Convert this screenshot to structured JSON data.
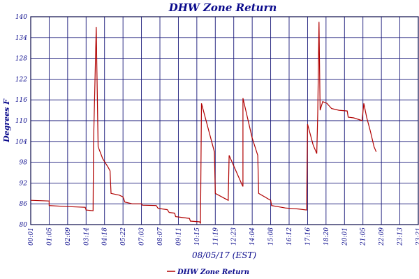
{
  "chart_data": {
    "type": "line",
    "title": "DHW Zone Return",
    "xlabel": "08/05/17 (EST)",
    "ylabel": "Degrees F",
    "ylim": [
      80,
      140
    ],
    "yticks": [
      80,
      86,
      92,
      98,
      104,
      110,
      116,
      122,
      128,
      134,
      140
    ],
    "xticks": [
      "00:01",
      "01:05",
      "02:09",
      "03:14",
      "04:18",
      "05:22",
      "07:03",
      "08:07",
      "09:11",
      "10:15",
      "11:19",
      "12:23",
      "14:04",
      "15:08",
      "16:12",
      "17:16",
      "18:20",
      "20:01",
      "21:05",
      "22:09",
      "23:13",
      "23:21"
    ],
    "grid": true,
    "legend": "bottom-center",
    "colors": {
      "line": "#b00000",
      "grid": "#1a1a7a",
      "text": "#0a0a8c"
    },
    "series": [
      {
        "name": "DHW Zone Return",
        "points": [
          [
            0.0,
            87.0
          ],
          [
            1.0,
            86.8
          ],
          [
            1.0,
            85.5
          ],
          [
            2.0,
            85.2
          ],
          [
            2.95,
            85.0
          ],
          [
            3.0,
            84.2
          ],
          [
            3.38,
            84.0
          ],
          [
            3.4,
            103.0
          ],
          [
            3.55,
            137.0
          ],
          [
            3.65,
            102.5
          ],
          [
            3.9,
            99.0
          ],
          [
            4.2,
            96.5
          ],
          [
            4.3,
            95.5
          ],
          [
            4.35,
            89.0
          ],
          [
            4.8,
            88.5
          ],
          [
            5.0,
            88.0
          ],
          [
            5.1,
            86.5
          ],
          [
            5.5,
            86.0
          ],
          [
            6.0,
            86.0
          ],
          [
            6.05,
            85.6
          ],
          [
            6.8,
            85.5
          ],
          [
            6.9,
            84.7
          ],
          [
            7.4,
            84.3
          ],
          [
            7.5,
            83.5
          ],
          [
            7.8,
            83.3
          ],
          [
            7.85,
            82.3
          ],
          [
            8.3,
            82.0
          ],
          [
            8.6,
            81.8
          ],
          [
            8.65,
            81.0
          ],
          [
            9.15,
            80.8
          ],
          [
            9.2,
            80.3
          ],
          [
            9.25,
            115.0
          ],
          [
            9.7,
            106.0
          ],
          [
            9.95,
            101.0
          ],
          [
            10.0,
            89.0
          ],
          [
            10.7,
            87.0
          ],
          [
            10.75,
            100.0
          ],
          [
            11.45,
            91.5
          ],
          [
            11.5,
            91.0
          ],
          [
            11.5,
            116.5
          ],
          [
            12.0,
            105.0
          ],
          [
            12.3,
            100.0
          ],
          [
            12.35,
            89.0
          ],
          [
            13.0,
            87.0
          ],
          [
            13.05,
            85.5
          ],
          [
            13.8,
            84.8
          ],
          [
            14.3,
            84.6
          ],
          [
            14.5,
            84.5
          ],
          [
            14.95,
            84.2
          ],
          [
            15.0,
            109.0
          ],
          [
            15.3,
            103.0
          ],
          [
            15.5,
            100.5
          ],
          [
            15.55,
            112.0
          ],
          [
            15.62,
            138.5
          ],
          [
            15.68,
            113.0
          ],
          [
            15.82,
            115.5
          ],
          [
            16.05,
            115.0
          ],
          [
            16.3,
            113.5
          ],
          [
            16.7,
            113.0
          ],
          [
            17.15,
            112.8
          ],
          [
            17.2,
            111.0
          ],
          [
            17.5,
            110.8
          ],
          [
            17.85,
            110.2
          ],
          [
            17.95,
            110.0
          ],
          [
            18.05,
            115.0
          ],
          [
            18.2,
            111.0
          ],
          [
            18.4,
            107.0
          ],
          [
            18.6,
            102.5
          ],
          [
            18.72,
            101.0
          ]
        ]
      }
    ]
  }
}
